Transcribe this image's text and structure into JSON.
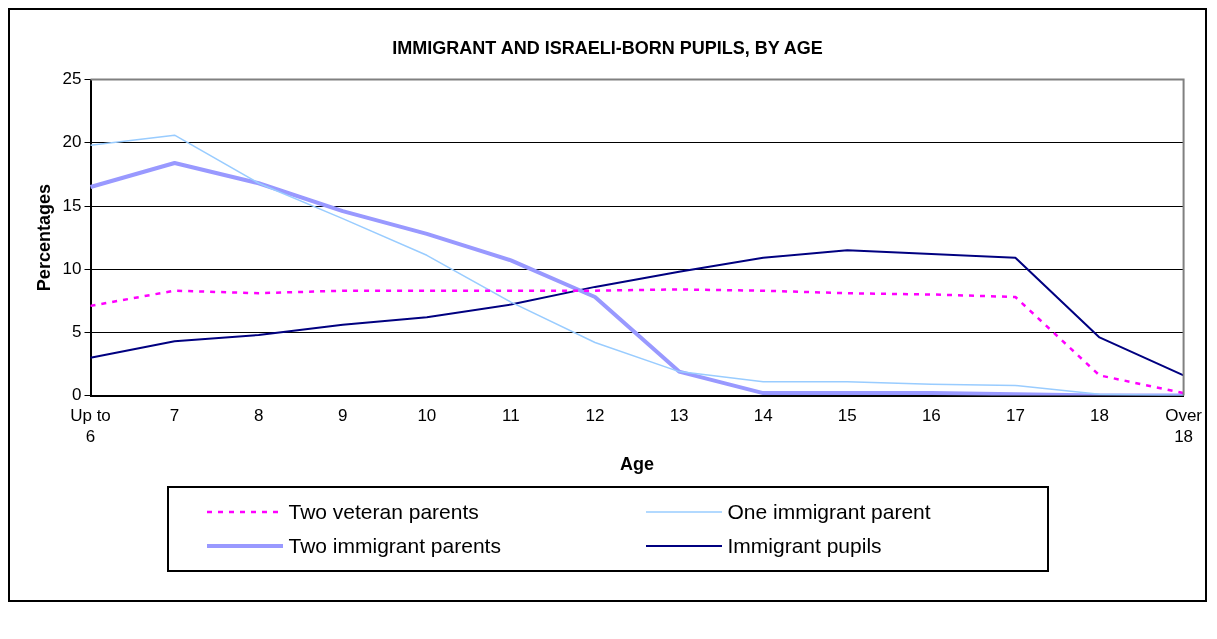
{
  "chart_data": {
    "type": "line",
    "title": "IMMIGRANT AND ISRAELI-BORN PUPILS, BY AGE",
    "xlabel": "Age",
    "ylabel": "Percentages",
    "categories": [
      "Up to 6",
      "7",
      "8",
      "9",
      "10",
      "11",
      "12",
      "13",
      "14",
      "15",
      "16",
      "17",
      "18",
      "Over 18"
    ],
    "series": [
      {
        "name": "Two veteran parents",
        "color": "#ff00ff",
        "line_style": "dotted",
        "values": [
          7.1,
          8.3,
          8.1,
          8.3,
          8.3,
          8.3,
          8.3,
          8.4,
          8.3,
          8.1,
          8.0,
          7.8,
          1.6,
          0.2
        ]
      },
      {
        "name": "One immigrant parent",
        "color": "#99ccff",
        "line_style": "solid",
        "values": [
          19.8,
          20.6,
          16.8,
          14.0,
          11.1,
          7.4,
          4.2,
          1.9,
          1.1,
          1.1,
          0.9,
          0.8,
          0.1,
          0.0
        ]
      },
      {
        "name": "Two immigrant parents",
        "color": "#9999ff",
        "line_style": "solid",
        "values": [
          16.5,
          18.4,
          16.8,
          14.6,
          12.8,
          10.7,
          7.8,
          1.9,
          0.2,
          0.2,
          0.2,
          0.1,
          0.0,
          0.0
        ]
      },
      {
        "name": "Immigrant pupils",
        "color": "#000080",
        "line_style": "solid",
        "values": [
          3.0,
          4.3,
          4.8,
          5.6,
          6.2,
          7.2,
          8.6,
          9.8,
          10.9,
          11.5,
          11.2,
          10.9,
          4.6,
          1.6
        ]
      }
    ],
    "ylim": [
      0,
      25
    ],
    "yticks": [
      0,
      5,
      10,
      15,
      20,
      25
    ],
    "grid": "y",
    "legend": "bottom",
    "marker": "none"
  }
}
